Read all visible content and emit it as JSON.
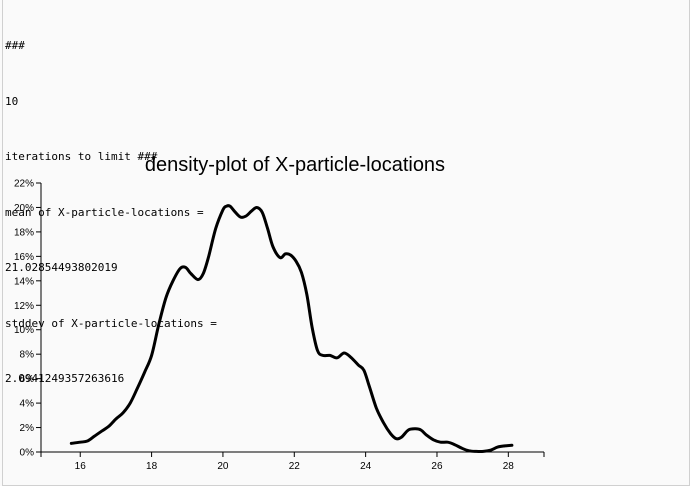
{
  "log_lines": [
    "###",
    "10",
    "iterations to limit ###",
    "mean of X-particle-locations =",
    "21.02854493802019",
    "stddev of X-particle-locations =",
    "2.0941249357263616"
  ],
  "chart_data": {
    "type": "line",
    "title": "density-plot of X-particle-locations",
    "xlabel": "",
    "ylabel": "",
    "xlim": [
      14.9,
      29.0
    ],
    "ylim": [
      0,
      22
    ],
    "x_ticks": [
      16,
      18,
      20,
      22,
      24,
      26,
      28
    ],
    "y_ticks": [
      0,
      2,
      4,
      6,
      8,
      10,
      12,
      14,
      16,
      18,
      20,
      22
    ],
    "y_tick_format": "percent",
    "grid": false,
    "legend": "none",
    "series_color": "#000000",
    "series": [
      {
        "x": [
          15.75,
          16.0,
          16.2,
          16.4,
          16.6,
          16.8,
          17.0,
          17.2,
          17.4,
          17.6,
          17.8,
          18.0,
          18.2,
          18.4,
          18.6,
          18.8,
          18.95,
          19.1,
          19.3,
          19.45,
          19.6,
          19.8,
          20.0,
          20.1,
          20.2,
          20.35,
          20.5,
          20.65,
          20.8,
          20.95,
          21.1,
          21.25,
          21.4,
          21.6,
          21.75,
          21.9,
          22.05,
          22.2,
          22.35,
          22.5,
          22.65,
          22.8,
          23.0,
          23.2,
          23.4,
          23.6,
          23.8,
          23.95,
          24.1,
          24.3,
          24.5,
          24.7,
          24.85,
          25.0,
          25.2,
          25.4,
          25.55,
          25.7,
          25.9,
          26.1,
          26.3,
          26.5,
          26.7,
          26.9,
          27.1,
          27.3,
          27.5,
          27.7,
          27.9,
          28.1
        ],
        "y": [
          0.7,
          0.8,
          0.9,
          1.3,
          1.7,
          2.1,
          2.7,
          3.2,
          4.0,
          5.2,
          6.5,
          7.9,
          10.4,
          12.6,
          14.0,
          15.0,
          15.1,
          14.6,
          14.1,
          14.6,
          16.0,
          18.3,
          19.8,
          20.1,
          20.1,
          19.6,
          19.2,
          19.3,
          19.7,
          20.0,
          19.6,
          18.3,
          16.8,
          15.9,
          16.2,
          16.1,
          15.6,
          14.7,
          12.9,
          10.2,
          8.3,
          7.9,
          7.9,
          7.7,
          8.1,
          7.7,
          7.1,
          6.7,
          5.4,
          3.6,
          2.4,
          1.5,
          1.1,
          1.2,
          1.8,
          1.9,
          1.8,
          1.4,
          1.0,
          0.8,
          0.8,
          0.6,
          0.3,
          0.1,
          0.05,
          0.05,
          0.15,
          0.4,
          0.5,
          0.55
        ]
      }
    ]
  }
}
